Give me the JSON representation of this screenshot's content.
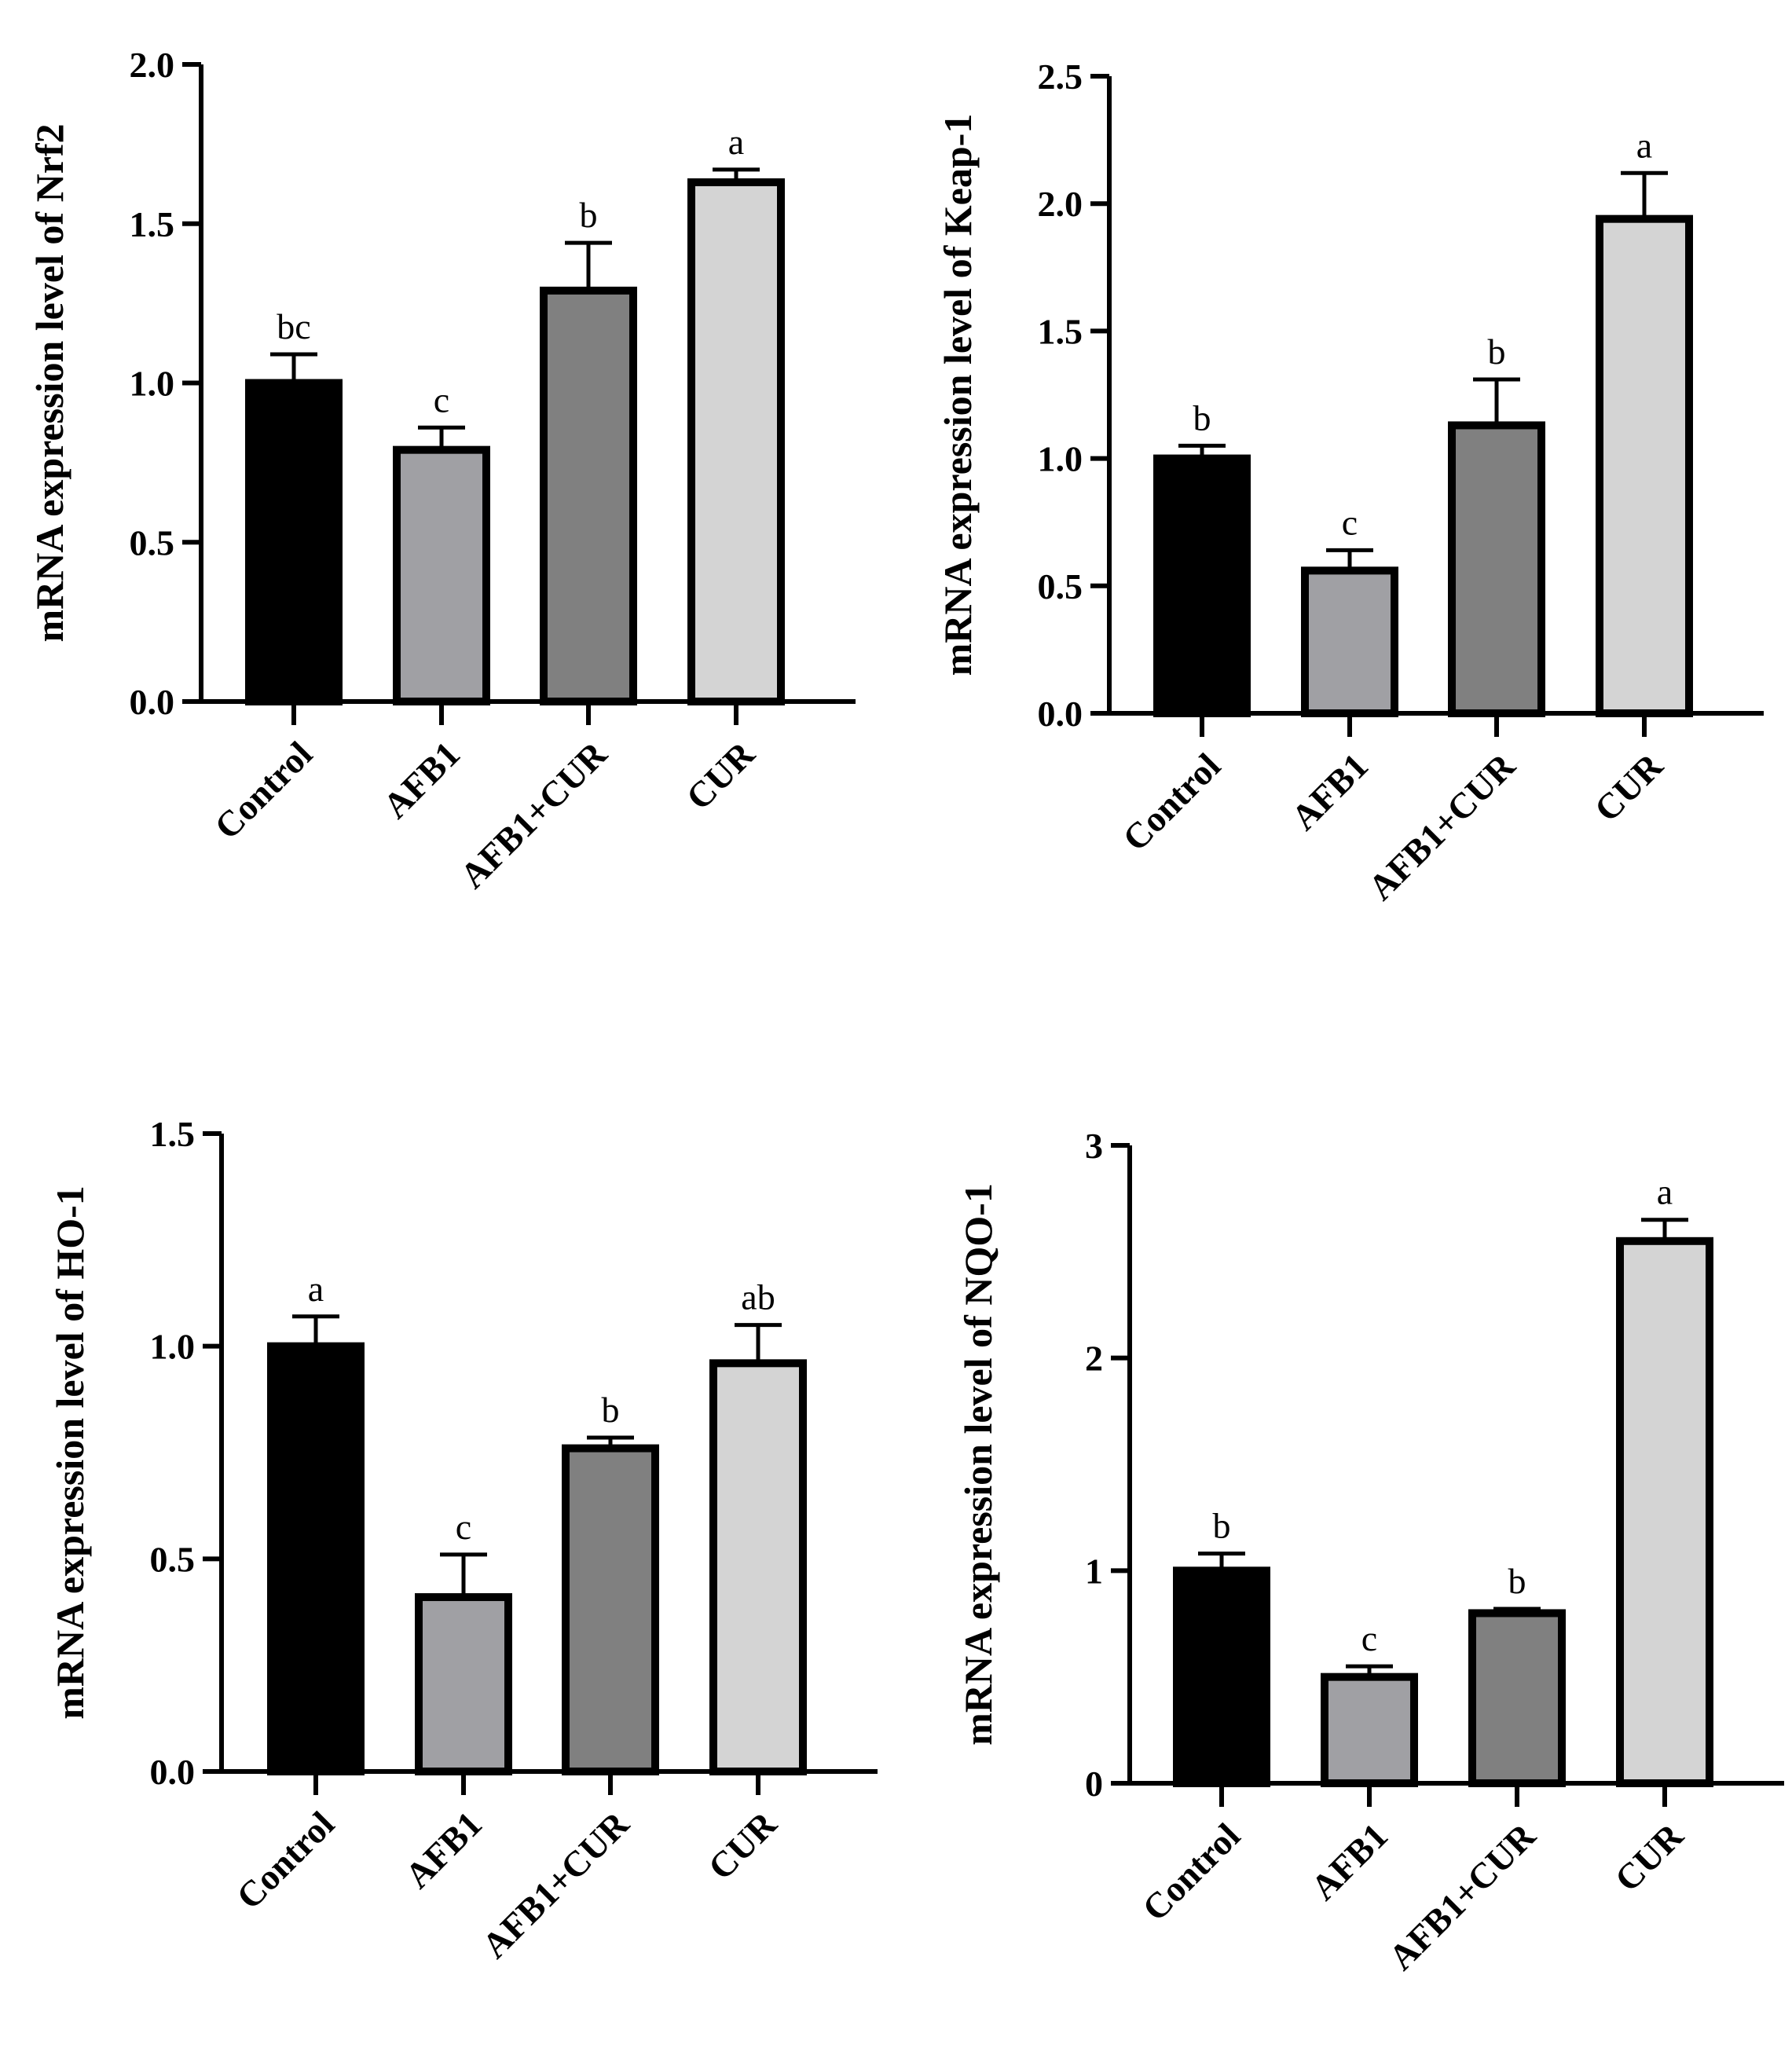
{
  "colors": {
    "Control": "#000000",
    "AFB1": "#a0a0a4",
    "AFB1+CUR": "#808080",
    "CUR": "#d4d4d4",
    "axis": "#000000",
    "bar_edge": "#000000"
  },
  "chart_data": [
    {
      "type": "bar",
      "title": "",
      "xlabel": "",
      "ylabel": "mRNA expression level of Nrf2",
      "categories": [
        "Control",
        "AFB1",
        "AFB1+CUR",
        "CUR"
      ],
      "values": [
        1.0,
        0.79,
        1.29,
        1.63
      ],
      "errors": [
        0.09,
        0.07,
        0.15,
        0.04
      ],
      "significance": [
        "bc",
        "c",
        "b",
        "a"
      ],
      "ylim": [
        0,
        2.0
      ],
      "yticks": [
        "0.0",
        "0.5",
        "1.0",
        "1.5",
        "2.0"
      ],
      "grid": false,
      "legend": "none"
    },
    {
      "type": "bar",
      "title": "",
      "xlabel": "",
      "ylabel": "mRNA expression level of Keap-1",
      "categories": [
        "Control",
        "AFB1",
        "AFB1+CUR",
        "CUR"
      ],
      "values": [
        1.0,
        0.56,
        1.13,
        1.94
      ],
      "errors": [
        0.05,
        0.08,
        0.18,
        0.18
      ],
      "significance": [
        "b",
        "c",
        "b",
        "a"
      ],
      "ylim": [
        0,
        2.5
      ],
      "yticks": [
        "0.0",
        "0.5",
        "1.0",
        "1.5",
        "2.0",
        "2.5"
      ],
      "grid": false,
      "legend": "none"
    },
    {
      "type": "bar",
      "title": "",
      "xlabel": "",
      "ylabel": "mRNA expression level of HO-1",
      "categories": [
        "Control",
        "AFB1",
        "AFB1+CUR",
        "CUR"
      ],
      "values": [
        1.0,
        0.41,
        0.76,
        0.96
      ],
      "errors": [
        0.07,
        0.1,
        0.025,
        0.09
      ],
      "significance": [
        "a",
        "c",
        "b",
        "ab"
      ],
      "ylim": [
        0,
        1.5
      ],
      "yticks": [
        "0.0",
        "0.5",
        "1.0",
        "1.5"
      ],
      "grid": false,
      "legend": "none"
    },
    {
      "type": "bar",
      "title": "",
      "xlabel": "",
      "ylabel": "mRNA expression level of NQO-1",
      "categories": [
        "Control",
        "AFB1",
        "AFB1+CUR",
        "CUR"
      ],
      "values": [
        1.0,
        0.5,
        0.8,
        2.55
      ],
      "errors": [
        0.08,
        0.05,
        0.02,
        0.1
      ],
      "significance": [
        "b",
        "c",
        "b",
        "a"
      ],
      "ylim": [
        0,
        3
      ],
      "yticks": [
        "0",
        "1",
        "2",
        "3"
      ],
      "grid": false,
      "legend": "none"
    }
  ]
}
